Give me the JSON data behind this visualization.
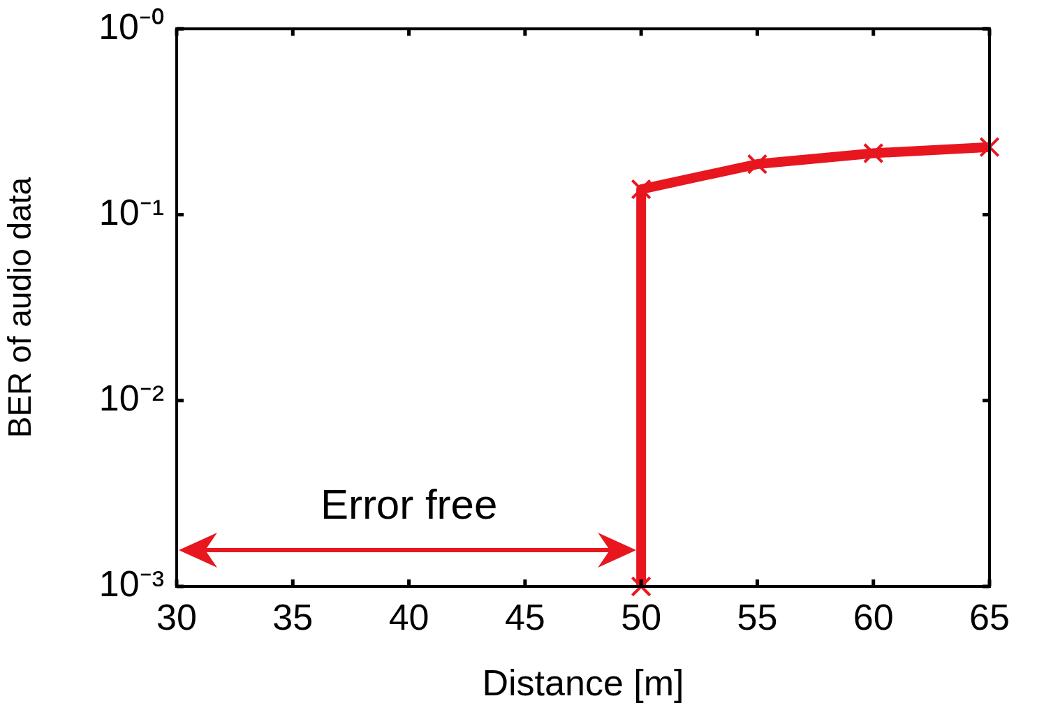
{
  "chart_data": {
    "type": "line",
    "xlabel": "Distance [m]",
    "ylabel": "BER of audio data",
    "xlim": [
      30,
      65
    ],
    "xticks": [
      30,
      35,
      40,
      45,
      50,
      55,
      60,
      65
    ],
    "ylim": [
      0.001,
      1
    ],
    "yticks": [
      {
        "value": 1,
        "label": "10⁻⁰"
      },
      {
        "value": 0.1,
        "label": "10⁻¹"
      },
      {
        "value": 0.01,
        "label": "10⁻²"
      },
      {
        "value": 0.001,
        "label": "10⁻³"
      }
    ],
    "log": "y",
    "grid": false,
    "legend": false,
    "marker": "cross",
    "line_style": "solid",
    "series": [
      {
        "color": "#e8161f",
        "x": [
          50,
          50,
          55,
          60,
          65
        ],
        "values": [
          0.001,
          0.137,
          0.187,
          0.214,
          0.231
        ]
      }
    ],
    "annotations": [
      "Error free"
    ]
  }
}
